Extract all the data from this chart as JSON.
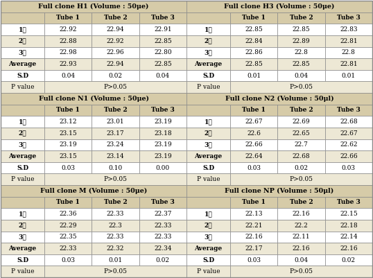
{
  "tables": [
    {
      "title": "Full clone H1 (Volume : 50μe)",
      "rows": [
        [
          "",
          "Tube 1",
          "Tube 2",
          "Tube 3"
        ],
        [
          "1회",
          "22.92",
          "22.94",
          "22.91"
        ],
        [
          "2회",
          "22.88",
          "22.92",
          "22.85"
        ],
        [
          "3회",
          "22.98",
          "22.96",
          "22.80"
        ],
        [
          "Average",
          "22.93",
          "22.94",
          "22.85"
        ],
        [
          "S.D",
          "0.04",
          "0.02",
          "0.04"
        ],
        [
          "P value",
          "P>0.05",
          "",
          ""
        ]
      ]
    },
    {
      "title": "Full clone H3 (Volume : 50μe)",
      "rows": [
        [
          "",
          "Tube 1",
          "Tube 2",
          "Tube 3"
        ],
        [
          "1회",
          "22.85",
          "22.85",
          "22.83"
        ],
        [
          "2회",
          "22.84",
          "22.89",
          "22.81"
        ],
        [
          "3회",
          "22.86",
          "22.8",
          "22.8"
        ],
        [
          "Average",
          "22.85",
          "22.85",
          "22.81"
        ],
        [
          "S.D",
          "0.01",
          "0.04",
          "0.01"
        ],
        [
          "P value",
          "P>0.05",
          "",
          ""
        ]
      ]
    },
    {
      "title": "Full clone N1 (Volume : 50μe)",
      "rows": [
        [
          "",
          "Tube 1",
          "Tube 2",
          "Tube 3"
        ],
        [
          "1회",
          "23.12",
          "23.01",
          "23.19"
        ],
        [
          "2회",
          "23.15",
          "23.17",
          "23.18"
        ],
        [
          "3회",
          "23.19",
          "23.24",
          "23.19"
        ],
        [
          "Average",
          "23.15",
          "23.14",
          "23.19"
        ],
        [
          "S.D",
          "0.03",
          "0.10",
          "0.00"
        ],
        [
          "P value",
          "P>0.05",
          "",
          ""
        ]
      ]
    },
    {
      "title": "Full clone N2 (Volume : 50μl)",
      "rows": [
        [
          "",
          "Tube 1",
          "Tube 2",
          "Tube 3"
        ],
        [
          "1회",
          "22.67",
          "22.69",
          "22.68"
        ],
        [
          "2회",
          "22.6",
          "22.65",
          "22.67"
        ],
        [
          "3회",
          "22.66",
          "22.7",
          "22.62"
        ],
        [
          "Average",
          "22.64",
          "22.68",
          "22.66"
        ],
        [
          "S.D",
          "0.03",
          "0.02",
          "0.03"
        ],
        [
          "P value",
          "P>0.05",
          "",
          ""
        ]
      ]
    },
    {
      "title": "Full clone M (Volume : 50μe)",
      "rows": [
        [
          "",
          "Tube 1",
          "Tube 2",
          "Tube 3"
        ],
        [
          "1회",
          "22.36",
          "22.33",
          "22.37"
        ],
        [
          "2회",
          "22.29",
          "22.3",
          "22.33"
        ],
        [
          "3회",
          "22.35",
          "22.33",
          "22.33"
        ],
        [
          "Average",
          "22.33",
          "22.32",
          "22.34"
        ],
        [
          "S.D",
          "0.03",
          "0.01",
          "0.02"
        ],
        [
          "P value",
          "P>0.05",
          "",
          ""
        ]
      ]
    },
    {
      "title": "Full clone NP (Volume : 50μl)",
      "rows": [
        [
          "",
          "Tube 1",
          "Tube 2",
          "Tube 3"
        ],
        [
          "1회",
          "22.13",
          "22.16",
          "22.15"
        ],
        [
          "2회",
          "22.21",
          "22.2",
          "22.18"
        ],
        [
          "3회",
          "22.16",
          "22.11",
          "22.14"
        ],
        [
          "Average",
          "22.17",
          "22.16",
          "22.16"
        ],
        [
          "S.D",
          "0.03",
          "0.04",
          "0.02"
        ],
        [
          "P value",
          "P>0.05",
          "",
          ""
        ]
      ]
    }
  ],
  "header_bg": "#d6cba8",
  "alt_row_bg": "#ede8d5",
  "white_bg": "#ffffff",
  "border_color": "#888888",
  "text_color": "#000000",
  "title_fontsize": 6.8,
  "cell_fontsize": 6.5,
  "fig_width": 5.38,
  "fig_height": 4.01,
  "dpi": 100
}
